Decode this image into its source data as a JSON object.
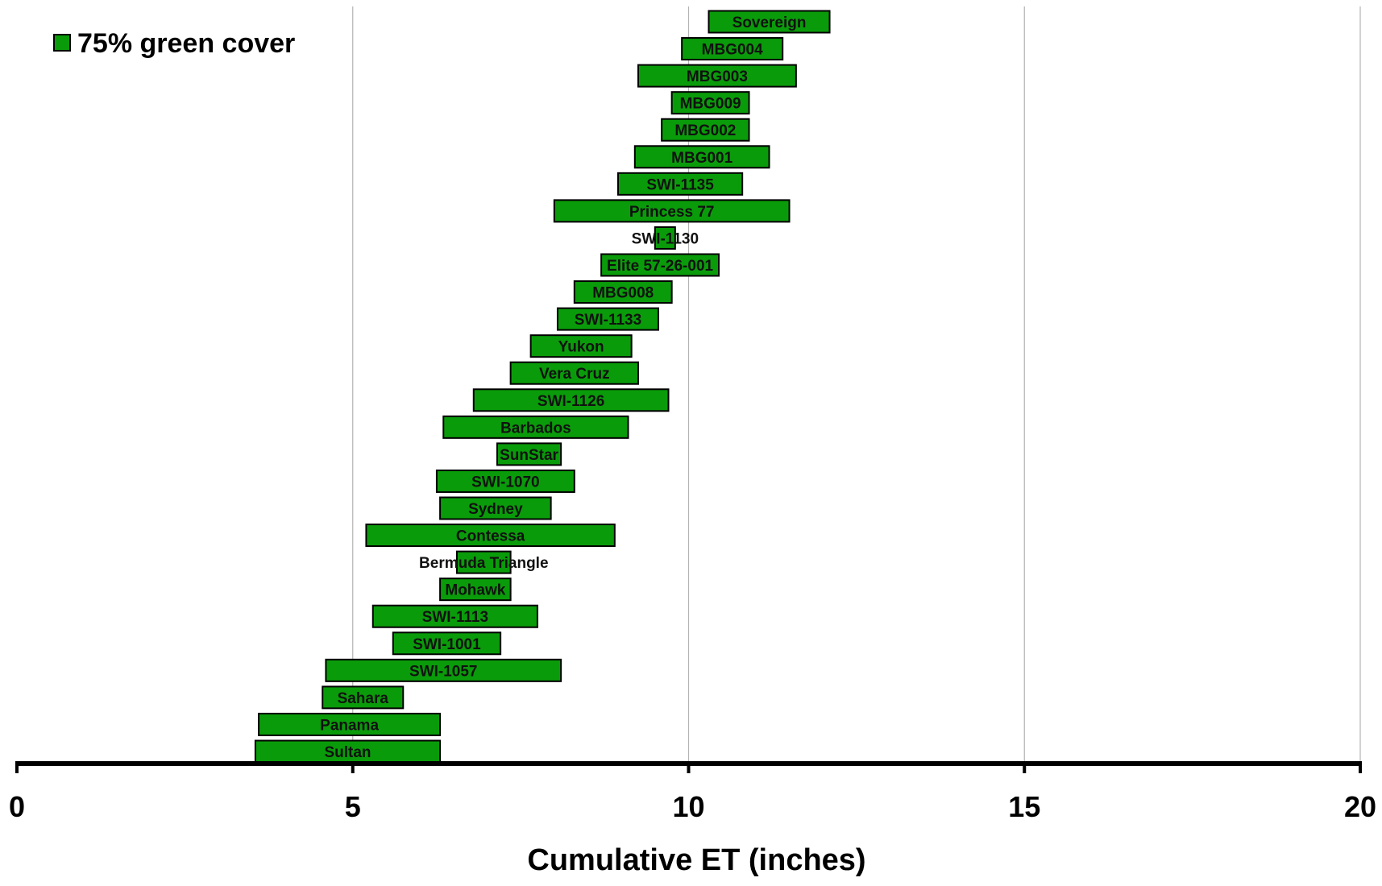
{
  "chart_data": {
    "type": "bar",
    "orientation": "horizontal",
    "style": "floating-range",
    "xlabel": "Cumulative ET (inches)",
    "xlim": [
      0,
      20
    ],
    "xticks": [
      "0",
      "5",
      "10",
      "15",
      "20"
    ],
    "grid": "vertical",
    "legend": {
      "position": "top-left",
      "entries": [
        "75% green cover"
      ]
    },
    "series": [
      {
        "name": "75% green cover",
        "color": "#0a9b0a",
        "bars": [
          {
            "label": "Sovereign",
            "start": 10.3,
            "end": 12.1
          },
          {
            "label": "MBG004",
            "start": 9.9,
            "end": 11.4
          },
          {
            "label": "MBG003",
            "start": 9.25,
            "end": 11.6
          },
          {
            "label": "MBG009",
            "start": 9.75,
            "end": 10.9
          },
          {
            "label": "MBG002",
            "start": 9.6,
            "end": 10.9
          },
          {
            "label": "MBG001",
            "start": 9.2,
            "end": 11.2
          },
          {
            "label": "SWI-1135",
            "start": 8.95,
            "end": 10.8
          },
          {
            "label": "Princess 77",
            "start": 8.0,
            "end": 11.5
          },
          {
            "label": "SWI-1130",
            "start": 9.5,
            "end": 9.8
          },
          {
            "label": "Elite 57-26-001",
            "start": 8.7,
            "end": 10.45
          },
          {
            "label": "MBG008",
            "start": 8.3,
            "end": 9.75
          },
          {
            "label": "SWI-1133",
            "start": 8.05,
            "end": 9.55
          },
          {
            "label": "Yukon",
            "start": 7.65,
            "end": 9.15
          },
          {
            "label": "Vera Cruz",
            "start": 7.35,
            "end": 9.25
          },
          {
            "label": "SWI-1126",
            "start": 6.8,
            "end": 9.7
          },
          {
            "label": "Barbados",
            "start": 6.35,
            "end": 9.1
          },
          {
            "label": "SunStar",
            "start": 7.15,
            "end": 8.1
          },
          {
            "label": "SWI-1070",
            "start": 6.25,
            "end": 8.3
          },
          {
            "label": "Sydney",
            "start": 6.3,
            "end": 7.95
          },
          {
            "label": "Contessa",
            "start": 5.2,
            "end": 8.9
          },
          {
            "label": "Bermuda Triangle",
            "start": 6.55,
            "end": 7.35
          },
          {
            "label": "Mohawk",
            "start": 6.3,
            "end": 7.35
          },
          {
            "label": "SWI-1113",
            "start": 5.3,
            "end": 7.75
          },
          {
            "label": "SWI-1001",
            "start": 5.6,
            "end": 7.2
          },
          {
            "label": "SWI-1057",
            "start": 4.6,
            "end": 8.1
          },
          {
            "label": "Sahara",
            "start": 4.55,
            "end": 5.75
          },
          {
            "label": "Panama",
            "start": 3.6,
            "end": 6.3
          },
          {
            "label": "Sultan",
            "start": 3.55,
            "end": 6.3
          }
        ]
      }
    ]
  }
}
